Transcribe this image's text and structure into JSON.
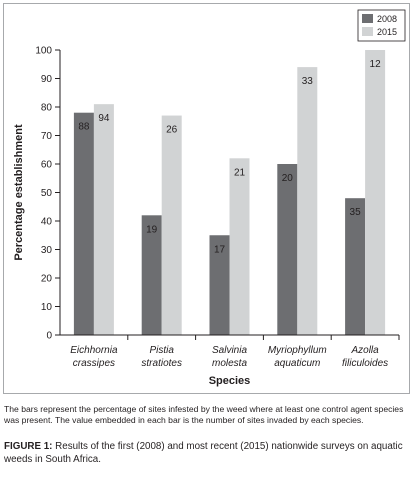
{
  "chart_data": {
    "type": "bar",
    "ylabel": "Percentage establishment",
    "xlabel": "Species",
    "ylim": [
      0,
      100
    ],
    "yticks": [
      0,
      10,
      20,
      30,
      40,
      50,
      60,
      70,
      80,
      90,
      100
    ],
    "ytick_labels": [
      "0",
      "10",
      "20",
      "30",
      "40",
      "50",
      "60",
      "70",
      "80",
      "90",
      "100"
    ],
    "categories": [
      [
        "Eichhornia",
        "crassipes"
      ],
      [
        "Pistia",
        "stratiotes"
      ],
      [
        "Salvinia",
        "molesta"
      ],
      [
        "Myriophyllum",
        "aquaticum"
      ],
      [
        "Azolla",
        "filiculoides"
      ]
    ],
    "series": [
      {
        "name": "2008",
        "color": "#6d6e71",
        "values": [
          78,
          42,
          35,
          60,
          48
        ],
        "bar_labels": [
          "88",
          "19",
          "17",
          "20",
          "35"
        ]
      },
      {
        "name": "2015",
        "color": "#d1d3d4",
        "values": [
          81,
          77,
          62,
          94,
          100
        ],
        "bar_labels": [
          "94",
          "26",
          "21",
          "33",
          "12"
        ]
      }
    ],
    "legend_position": "top-right",
    "grid": false
  },
  "note": "The bars represent the percentage of sites infested by the weed where at least one control agent species was present. The value embedded in each bar is the number of sites invaded by each species.",
  "caption": {
    "label": "FIGURE 1:",
    "text": " Results of the first (2008) and most recent (2015) nationwide surveys on aquatic weeds in South Africa."
  }
}
